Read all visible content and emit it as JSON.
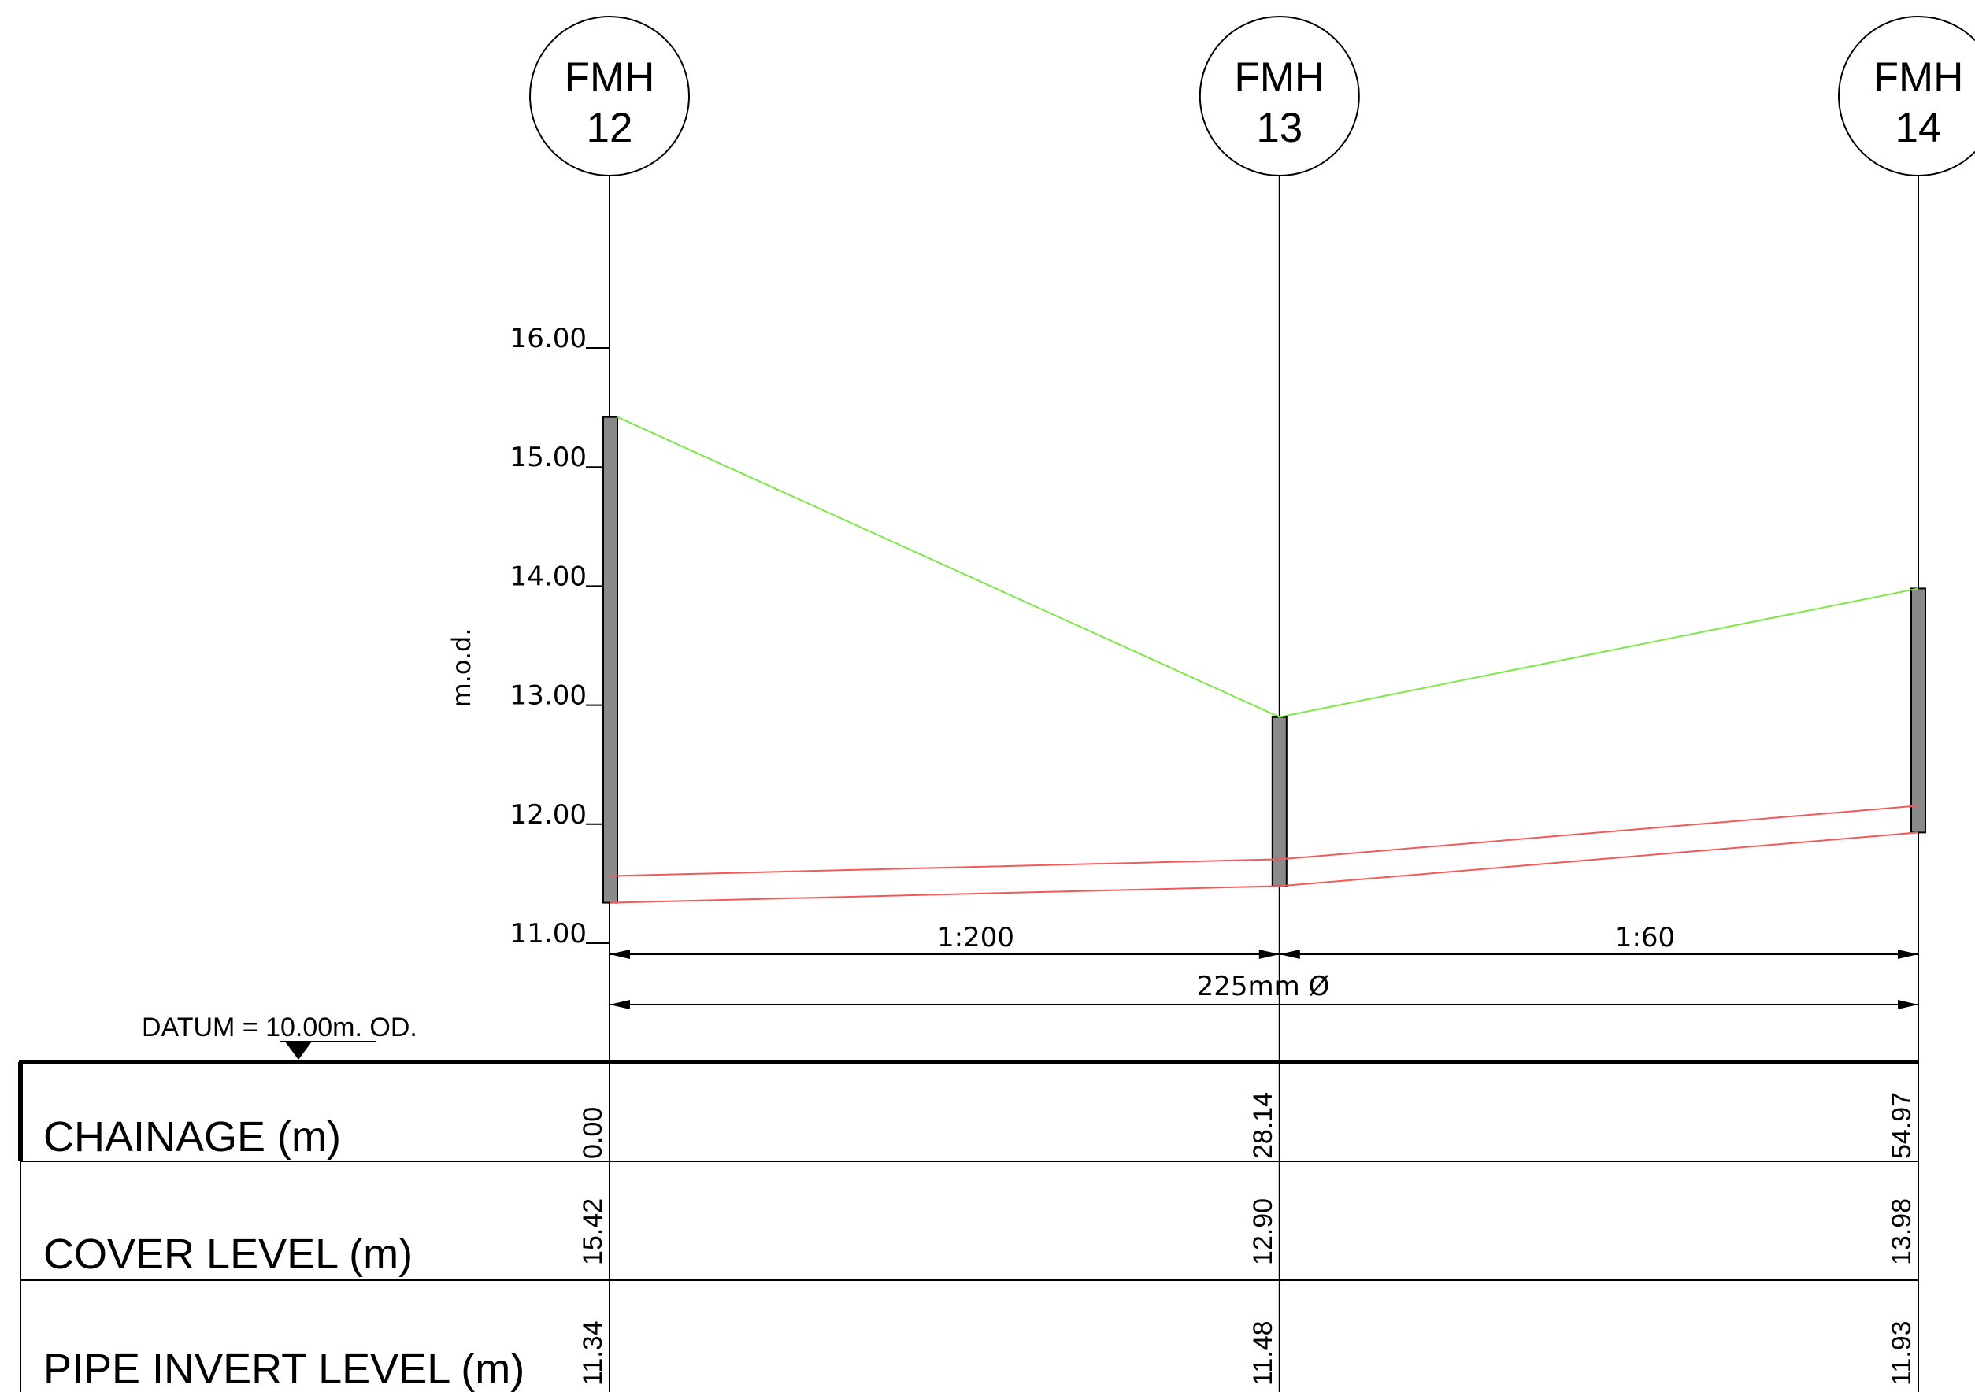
{
  "chart_data": {
    "type": "line",
    "yunit": "m.o.d.",
    "yticks": [
      "11.00",
      "12.00",
      "13.00",
      "14.00",
      "15.00",
      "16.00"
    ],
    "ylim": [
      11.0,
      16.0
    ],
    "grid": false,
    "manholes": [
      {
        "line1": "FMH",
        "line2": "12",
        "chainage": "0.00",
        "cover": "15.42",
        "invert": "11.34"
      },
      {
        "line1": "FMH",
        "line2": "13",
        "chainage": "28.14",
        "cover": "12.90",
        "invert": "11.48"
      },
      {
        "line1": "FMH",
        "line2": "14",
        "chainage": "54.97",
        "cover": "13.98",
        "invert": "11.93"
      }
    ],
    "series": [
      {
        "values": [
          15.42,
          12.9,
          13.98
        ],
        "color": "#7ee64a"
      },
      {
        "values": [
          11.34,
          11.48,
          11.93
        ],
        "color": "#f25a5a"
      }
    ],
    "gradients": [
      "1:200",
      "1:60"
    ],
    "pipe_size": "225mm Ø",
    "datum": "DATUM = 10.00m. OD.",
    "rows": [
      {
        "label": "CHAINAGE (m)",
        "key": "chainage"
      },
      {
        "label": "COVER LEVEL (m)",
        "key": "cover"
      },
      {
        "label": "PIPE INVERT LEVEL (m)",
        "key": "invert"
      }
    ]
  }
}
